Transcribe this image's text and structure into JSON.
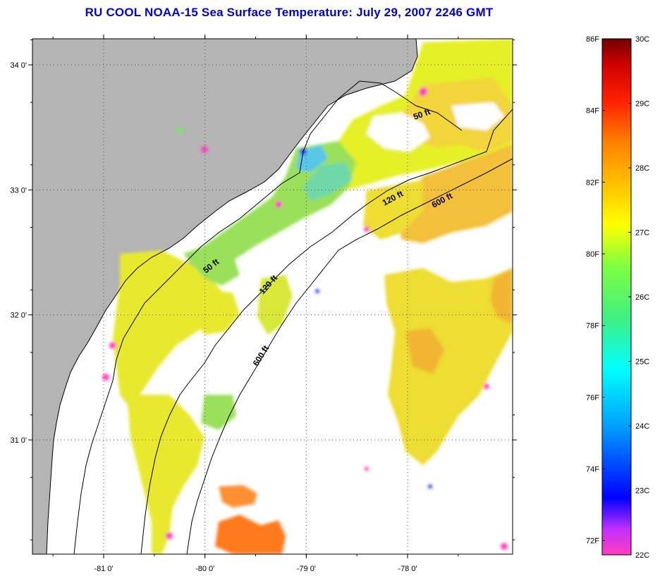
{
  "title": "RU COOL  NOAA-15  Sea Surface Temperature:  July 29, 2007 2246 GMT",
  "map": {
    "lat_ticks": [
      {
        "label": "34 0'",
        "value": 34.0
      },
      {
        "label": "33 0'",
        "value": 33.0
      },
      {
        "label": "32 0'",
        "value": 32.0
      },
      {
        "label": "31 0'",
        "value": 31.0
      }
    ],
    "lon_ticks": [
      {
        "label": "-81 0'",
        "value": -81.0
      },
      {
        "label": "-80 0'",
        "value": -80.0
      },
      {
        "label": "-79 0'",
        "value": -79.0
      },
      {
        "label": "-78 0'",
        "value": -78.0
      }
    ],
    "isobaths": [
      {
        "label": "50 ft"
      },
      {
        "label": "120 ft"
      },
      {
        "label": "600 ft"
      },
      {
        "label": "50 ft"
      },
      {
        "label": "120 ft"
      },
      {
        "label": "600 ft"
      }
    ],
    "colors": {
      "land": "#b4b4b4",
      "no_data": "#ffffff",
      "coastline": "#000000"
    }
  },
  "colorbar": {
    "fahrenheit_labels": [
      "86F",
      "84F",
      "82F",
      "80F",
      "78F",
      "76F",
      "74F",
      "72F"
    ],
    "celsius_labels": [
      "30C",
      "29C",
      "28C",
      "27C",
      "26C",
      "25C",
      "24C",
      "23C",
      "22C"
    ],
    "range_c": [
      22,
      30
    ],
    "stops": [
      {
        "t": 0.0,
        "color": "#ff3fc0"
      },
      {
        "t": 0.05,
        "color": "#c030ff"
      },
      {
        "t": 0.11,
        "color": "#0000ff"
      },
      {
        "t": 0.25,
        "color": "#00a0ff"
      },
      {
        "t": 0.36,
        "color": "#00ffff"
      },
      {
        "t": 0.46,
        "color": "#40f080"
      },
      {
        "t": 0.56,
        "color": "#80ff40"
      },
      {
        "t": 0.64,
        "color": "#ffff00"
      },
      {
        "t": 0.72,
        "color": "#ffc000"
      },
      {
        "t": 0.8,
        "color": "#ff8000"
      },
      {
        "t": 0.88,
        "color": "#ff2000"
      },
      {
        "t": 0.95,
        "color": "#d00000"
      },
      {
        "t": 1.0,
        "color": "#700000"
      }
    ]
  }
}
